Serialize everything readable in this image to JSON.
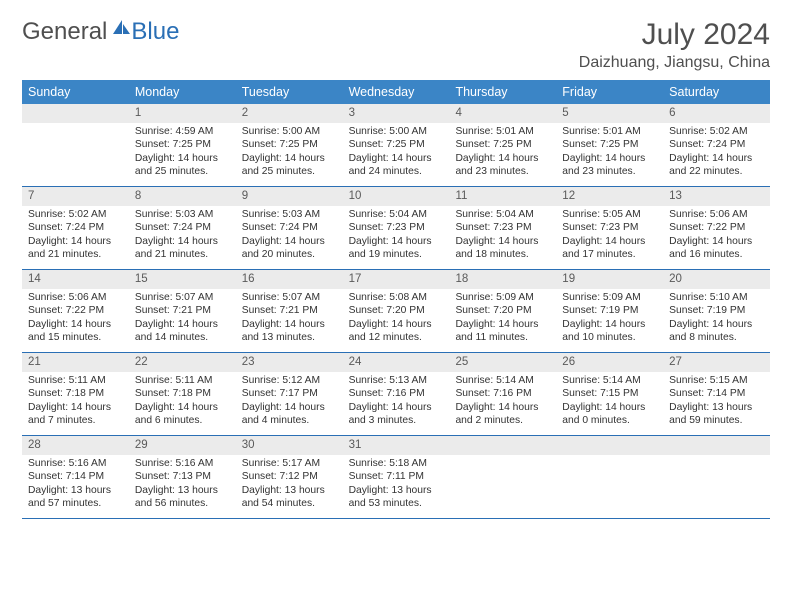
{
  "brand": {
    "name_a": "General",
    "name_b": "Blue"
  },
  "title": "July 2024",
  "location": "Daizhuang, Jiangsu, China",
  "colors": {
    "header_bg": "#3b85c6",
    "header_text": "#ffffff",
    "daynum_bg": "#ebebeb",
    "text": "#333333",
    "rule": "#2a6fb5",
    "logo_gray": "#4f4f4f",
    "logo_blue": "#2a6fb5"
  },
  "day_names": [
    "Sunday",
    "Monday",
    "Tuesday",
    "Wednesday",
    "Thursday",
    "Friday",
    "Saturday"
  ],
  "weeks": [
    [
      {
        "n": "",
        "sr": "",
        "ss": "",
        "dl": ""
      },
      {
        "n": "1",
        "sr": "Sunrise: 4:59 AM",
        "ss": "Sunset: 7:25 PM",
        "dl": "Daylight: 14 hours and 25 minutes."
      },
      {
        "n": "2",
        "sr": "Sunrise: 5:00 AM",
        "ss": "Sunset: 7:25 PM",
        "dl": "Daylight: 14 hours and 25 minutes."
      },
      {
        "n": "3",
        "sr": "Sunrise: 5:00 AM",
        "ss": "Sunset: 7:25 PM",
        "dl": "Daylight: 14 hours and 24 minutes."
      },
      {
        "n": "4",
        "sr": "Sunrise: 5:01 AM",
        "ss": "Sunset: 7:25 PM",
        "dl": "Daylight: 14 hours and 23 minutes."
      },
      {
        "n": "5",
        "sr": "Sunrise: 5:01 AM",
        "ss": "Sunset: 7:25 PM",
        "dl": "Daylight: 14 hours and 23 minutes."
      },
      {
        "n": "6",
        "sr": "Sunrise: 5:02 AM",
        "ss": "Sunset: 7:24 PM",
        "dl": "Daylight: 14 hours and 22 minutes."
      }
    ],
    [
      {
        "n": "7",
        "sr": "Sunrise: 5:02 AM",
        "ss": "Sunset: 7:24 PM",
        "dl": "Daylight: 14 hours and 21 minutes."
      },
      {
        "n": "8",
        "sr": "Sunrise: 5:03 AM",
        "ss": "Sunset: 7:24 PM",
        "dl": "Daylight: 14 hours and 21 minutes."
      },
      {
        "n": "9",
        "sr": "Sunrise: 5:03 AM",
        "ss": "Sunset: 7:24 PM",
        "dl": "Daylight: 14 hours and 20 minutes."
      },
      {
        "n": "10",
        "sr": "Sunrise: 5:04 AM",
        "ss": "Sunset: 7:23 PM",
        "dl": "Daylight: 14 hours and 19 minutes."
      },
      {
        "n": "11",
        "sr": "Sunrise: 5:04 AM",
        "ss": "Sunset: 7:23 PM",
        "dl": "Daylight: 14 hours and 18 minutes."
      },
      {
        "n": "12",
        "sr": "Sunrise: 5:05 AM",
        "ss": "Sunset: 7:23 PM",
        "dl": "Daylight: 14 hours and 17 minutes."
      },
      {
        "n": "13",
        "sr": "Sunrise: 5:06 AM",
        "ss": "Sunset: 7:22 PM",
        "dl": "Daylight: 14 hours and 16 minutes."
      }
    ],
    [
      {
        "n": "14",
        "sr": "Sunrise: 5:06 AM",
        "ss": "Sunset: 7:22 PM",
        "dl": "Daylight: 14 hours and 15 minutes."
      },
      {
        "n": "15",
        "sr": "Sunrise: 5:07 AM",
        "ss": "Sunset: 7:21 PM",
        "dl": "Daylight: 14 hours and 14 minutes."
      },
      {
        "n": "16",
        "sr": "Sunrise: 5:07 AM",
        "ss": "Sunset: 7:21 PM",
        "dl": "Daylight: 14 hours and 13 minutes."
      },
      {
        "n": "17",
        "sr": "Sunrise: 5:08 AM",
        "ss": "Sunset: 7:20 PM",
        "dl": "Daylight: 14 hours and 12 minutes."
      },
      {
        "n": "18",
        "sr": "Sunrise: 5:09 AM",
        "ss": "Sunset: 7:20 PM",
        "dl": "Daylight: 14 hours and 11 minutes."
      },
      {
        "n": "19",
        "sr": "Sunrise: 5:09 AM",
        "ss": "Sunset: 7:19 PM",
        "dl": "Daylight: 14 hours and 10 minutes."
      },
      {
        "n": "20",
        "sr": "Sunrise: 5:10 AM",
        "ss": "Sunset: 7:19 PM",
        "dl": "Daylight: 14 hours and 8 minutes."
      }
    ],
    [
      {
        "n": "21",
        "sr": "Sunrise: 5:11 AM",
        "ss": "Sunset: 7:18 PM",
        "dl": "Daylight: 14 hours and 7 minutes."
      },
      {
        "n": "22",
        "sr": "Sunrise: 5:11 AM",
        "ss": "Sunset: 7:18 PM",
        "dl": "Daylight: 14 hours and 6 minutes."
      },
      {
        "n": "23",
        "sr": "Sunrise: 5:12 AM",
        "ss": "Sunset: 7:17 PM",
        "dl": "Daylight: 14 hours and 4 minutes."
      },
      {
        "n": "24",
        "sr": "Sunrise: 5:13 AM",
        "ss": "Sunset: 7:16 PM",
        "dl": "Daylight: 14 hours and 3 minutes."
      },
      {
        "n": "25",
        "sr": "Sunrise: 5:14 AM",
        "ss": "Sunset: 7:16 PM",
        "dl": "Daylight: 14 hours and 2 minutes."
      },
      {
        "n": "26",
        "sr": "Sunrise: 5:14 AM",
        "ss": "Sunset: 7:15 PM",
        "dl": "Daylight: 14 hours and 0 minutes."
      },
      {
        "n": "27",
        "sr": "Sunrise: 5:15 AM",
        "ss": "Sunset: 7:14 PM",
        "dl": "Daylight: 13 hours and 59 minutes."
      }
    ],
    [
      {
        "n": "28",
        "sr": "Sunrise: 5:16 AM",
        "ss": "Sunset: 7:14 PM",
        "dl": "Daylight: 13 hours and 57 minutes."
      },
      {
        "n": "29",
        "sr": "Sunrise: 5:16 AM",
        "ss": "Sunset: 7:13 PM",
        "dl": "Daylight: 13 hours and 56 minutes."
      },
      {
        "n": "30",
        "sr": "Sunrise: 5:17 AM",
        "ss": "Sunset: 7:12 PM",
        "dl": "Daylight: 13 hours and 54 minutes."
      },
      {
        "n": "31",
        "sr": "Sunrise: 5:18 AM",
        "ss": "Sunset: 7:11 PM",
        "dl": "Daylight: 13 hours and 53 minutes."
      },
      {
        "n": "",
        "sr": "",
        "ss": "",
        "dl": ""
      },
      {
        "n": "",
        "sr": "",
        "ss": "",
        "dl": ""
      },
      {
        "n": "",
        "sr": "",
        "ss": "",
        "dl": ""
      }
    ]
  ]
}
